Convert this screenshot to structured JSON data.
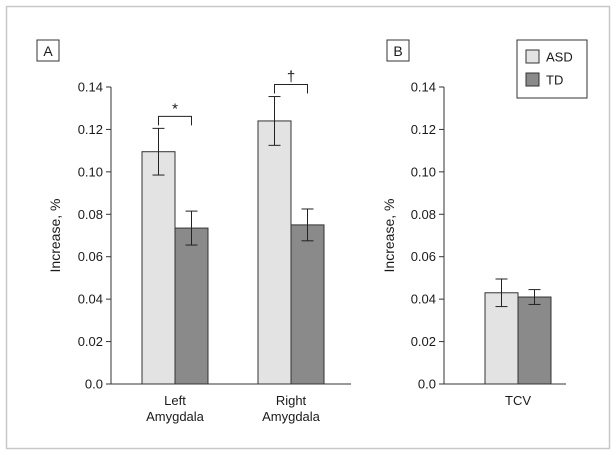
{
  "colors": {
    "ASD": "#e3e3e3",
    "TD": "#8a8a8a",
    "border": "#c8c8c8",
    "axis": "#333333"
  },
  "chart_data": [
    {
      "type": "bar",
      "panel": "A",
      "categories": [
        "Left Amygdala",
        "Right Amygdala"
      ],
      "series": [
        {
          "name": "ASD",
          "values": [
            0.1095,
            0.124
          ],
          "errors": [
            0.011,
            0.0115
          ]
        },
        {
          "name": "TD",
          "values": [
            0.0735,
            0.075
          ],
          "errors": [
            0.008,
            0.0075
          ]
        }
      ],
      "ylabel": "Increase, %",
      "ylim": [
        0.0,
        0.14
      ],
      "yticks": [
        0.0,
        0.02,
        0.04,
        0.06,
        0.08,
        0.1,
        0.12,
        0.14
      ],
      "ytick_labels": [
        "0.0",
        "0.02",
        "0.04",
        "0.06",
        "0.08",
        "0.10",
        "0.12",
        "0.14"
      ],
      "annotations": [
        {
          "category": "Left Amygdala",
          "text": "*"
        },
        {
          "category": "Right Amygdala",
          "text": "†"
        }
      ]
    },
    {
      "type": "bar",
      "panel": "B",
      "categories": [
        "TCV"
      ],
      "series": [
        {
          "name": "ASD",
          "values": [
            0.043
          ],
          "errors": [
            0.0065
          ]
        },
        {
          "name": "TD",
          "values": [
            0.041
          ],
          "errors": [
            0.0035
          ]
        }
      ],
      "ylabel": "Increase, %",
      "ylim": [
        0.0,
        0.14
      ],
      "yticks": [
        0.0,
        0.02,
        0.04,
        0.06,
        0.08,
        0.1,
        0.12,
        0.14
      ],
      "ytick_labels": [
        "0.0",
        "0.02",
        "0.04",
        "0.06",
        "0.08",
        "0.10",
        "0.12",
        "0.14"
      ],
      "legend": {
        "placement": "top-right",
        "entries": [
          {
            "label": "ASD",
            "color": "#e3e3e3"
          },
          {
            "label": "TD",
            "color": "#8a8a8a"
          }
        ]
      }
    }
  ]
}
